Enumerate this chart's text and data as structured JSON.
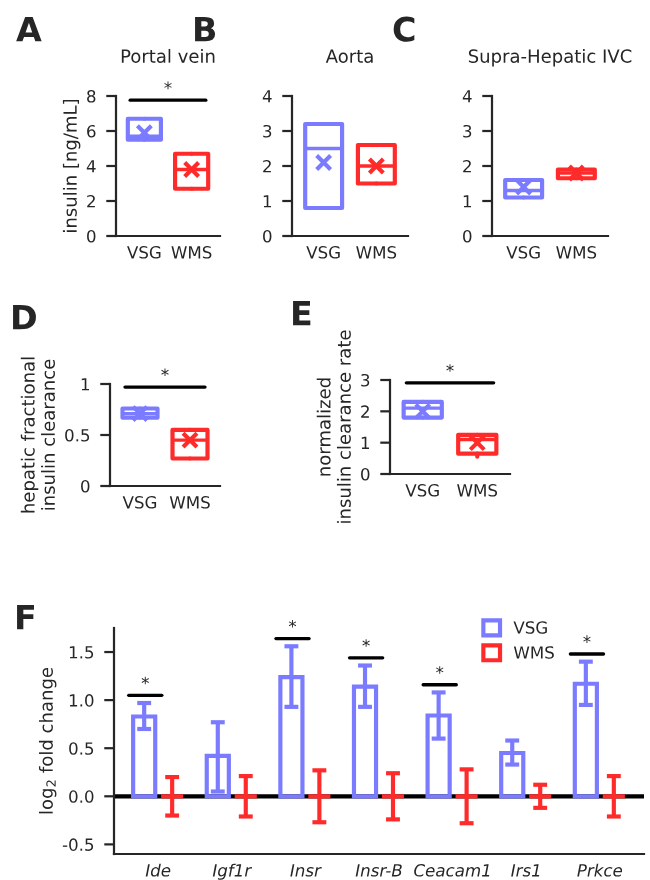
{
  "chart_data": [
    {
      "type": "box",
      "title": "Portal vein",
      "ylabel": "insulin [ng/mL]",
      "categories": [
        "VSG",
        "WMS"
      ],
      "colors": [
        "#7b7bff",
        "#ff2a2a"
      ],
      "boxes": [
        {
          "low": 5.5,
          "q1": 5.5,
          "median": 5.7,
          "q3": 6.7,
          "high": 6.7,
          "mean": 5.9
        },
        {
          "low": 2.7,
          "q1": 2.7,
          "median": 3.8,
          "q3": 4.7,
          "high": 4.7,
          "mean": 3.8
        }
      ],
      "ylim": [
        0,
        8
      ],
      "yticks": [
        0,
        2,
        4,
        6,
        8
      ],
      "annotations": [
        "A",
        "*"
      ]
    },
    {
      "type": "box",
      "title": "Aorta",
      "categories": [
        "VSG",
        "WMS"
      ],
      "colors": [
        "#7b7bff",
        "#ff2a2a"
      ],
      "boxes": [
        {
          "low": 0.8,
          "q1": 0.8,
          "median": 2.5,
          "q3": 3.2,
          "high": 3.2,
          "mean": 2.1
        },
        {
          "low": 1.5,
          "q1": 1.5,
          "median": 2.0,
          "q3": 2.6,
          "high": 2.6,
          "mean": 2.0
        }
      ],
      "ylim": [
        0,
        4
      ],
      "yticks": [
        0,
        1,
        2,
        3,
        4
      ],
      "annotations": [
        "B"
      ]
    },
    {
      "type": "box",
      "title": "Supra-Hepatic IVC",
      "categories": [
        "VSG",
        "WMS"
      ],
      "colors": [
        "#7b7bff",
        "#ff2a2a"
      ],
      "boxes": [
        {
          "low": 1.1,
          "q1": 1.1,
          "median": 1.3,
          "q3": 1.6,
          "high": 1.6,
          "mean": 1.4
        },
        {
          "low": 1.65,
          "q1": 1.65,
          "median": 1.8,
          "q3": 1.9,
          "high": 1.9,
          "mean": 1.8
        }
      ],
      "ylim": [
        0,
        4
      ],
      "yticks": [
        0,
        1,
        2,
        3,
        4
      ],
      "annotations": [
        "C"
      ]
    },
    {
      "type": "box",
      "ylabel": "hepatic fractional\ninsulin clearance",
      "categories": [
        "VSG",
        "WMS"
      ],
      "colors": [
        "#7b7bff",
        "#ff2a2a"
      ],
      "boxes": [
        {
          "low": 0.67,
          "q1": 0.67,
          "median": 0.71,
          "q3": 0.76,
          "high": 0.76,
          "mean": 0.71
        },
        {
          "low": 0.27,
          "q1": 0.27,
          "median": 0.45,
          "q3": 0.55,
          "high": 0.55,
          "mean": 0.45
        }
      ],
      "ylim": [
        0,
        1
      ],
      "yticks": [
        0,
        0.5,
        1
      ],
      "annotations": [
        "D",
        "*"
      ]
    },
    {
      "type": "box",
      "ylabel": "normalized\ninsulin clearance rate",
      "categories": [
        "VSG",
        "WMS"
      ],
      "colors": [
        "#7b7bff",
        "#ff2a2a"
      ],
      "boxes": [
        {
          "low": 1.8,
          "q1": 1.8,
          "median": 2.1,
          "q3": 2.3,
          "high": 2.3,
          "mean": 2.0
        },
        {
          "low": 0.55,
          "q1": 0.65,
          "median": 1.1,
          "q3": 1.25,
          "high": 1.25,
          "mean": 1.0
        }
      ],
      "ylim": [
        0,
        3
      ],
      "yticks": [
        0,
        1,
        2,
        3
      ],
      "annotations": [
        "E",
        "*"
      ]
    },
    {
      "type": "bar",
      "ylabel": "log$_{2}$ fold change",
      "categories": [
        "Ide",
        "Igf1r",
        "Insr",
        "Insr-B",
        "Ceacam1",
        "Irs1",
        "Prkce"
      ],
      "series": [
        {
          "name": "VSG",
          "color": "#7b7bff",
          "values": [
            0.83,
            0.42,
            1.24,
            1.14,
            0.84,
            0.45,
            1.17
          ],
          "errors": [
            [
              0.7,
              0.97
            ],
            [
              0.05,
              0.77
            ],
            [
              0.93,
              1.56
            ],
            [
              0.93,
              1.36
            ],
            [
              0.6,
              1.08
            ],
            [
              0.33,
              0.58
            ],
            [
              0.95,
              1.4
            ]
          ],
          "value_labels": [
            "*",
            null,
            "*",
            "*",
            "*",
            null,
            "*"
          ]
        },
        {
          "name": "WMS",
          "color": "#ff2a2a",
          "values": [
            0,
            0,
            0,
            0,
            0,
            0,
            0
          ],
          "errors": [
            0.2,
            0.21,
            0.27,
            0.24,
            0.28,
            0.12,
            0.21
          ]
        }
      ],
      "ylim": [
        -0.6,
        1.75
      ],
      "yticks": [
        {
          "value": -0.5,
          "label": "-0.5"
        },
        {
          "value": 0,
          "label": "0.0"
        },
        {
          "value": 0.5,
          "label": "0.5"
        },
        {
          "value": 1.0,
          "label": "1.0"
        },
        {
          "value": 1.5,
          "label": "1.5"
        }
      ],
      "ref_lines": [
        {
          "axis": "y",
          "value": 0,
          "color": "#000000"
        }
      ],
      "legend": "top right",
      "annotations": [
        "F"
      ]
    }
  ]
}
